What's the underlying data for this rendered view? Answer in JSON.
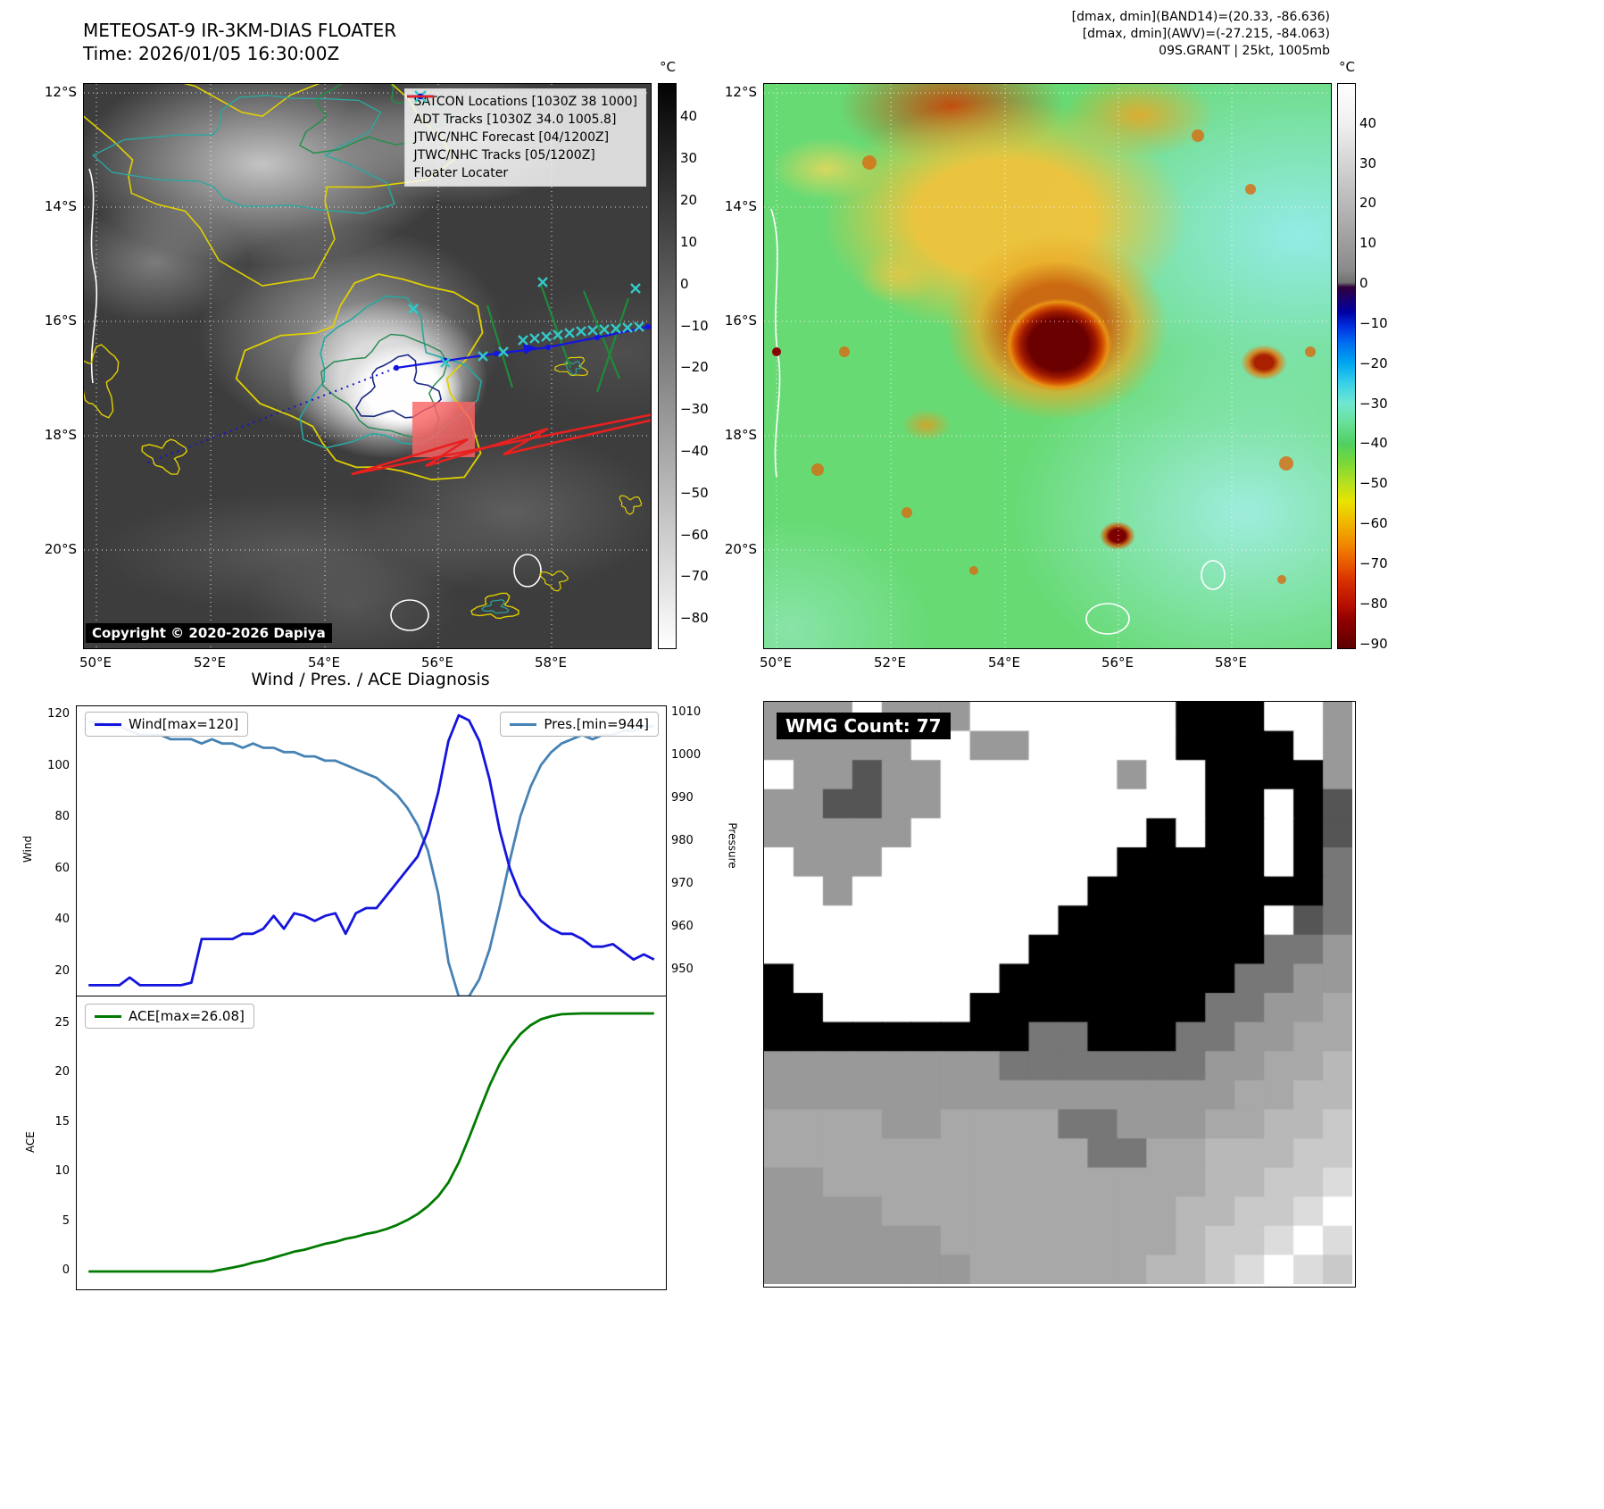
{
  "ir_panel": {
    "title": "METEOSAT-9 IR-3KM-DIAS FLOATER",
    "subtitle": "Time: 2026/01/05 16:30:00Z",
    "copyright": "Copyright © 2020-2026 Dapiya",
    "legend": [
      {
        "label": "SATCON Locations [1030Z 38 1000]",
        "marker": "x",
        "color": "#35c8c8"
      },
      {
        "label": "ADT Tracks [1030Z 34.0 1005.8]",
        "marker": "line",
        "color": "#1f8a3a"
      },
      {
        "label": "JTWC/NHC Forecast [04/1200Z]",
        "marker": "dotted",
        "color": "#1515cc"
      },
      {
        "label": "JTWC/NHC Tracks [05/1200Z]",
        "marker": "line-dot",
        "color": "#1515e0"
      },
      {
        "label": "Floater Locater",
        "marker": "line",
        "color": "#e82020"
      }
    ],
    "lat_ticks": [
      "12°S",
      "14°S",
      "16°S",
      "18°S",
      "20°S"
    ],
    "lon_ticks": [
      "50°E",
      "52°E",
      "54°E",
      "56°E",
      "58°E"
    ],
    "colorbar_unit": "°C",
    "colorbar_ticks": [
      "40",
      "30",
      "20",
      "10",
      "0",
      "−10",
      "−20",
      "−30",
      "−40",
      "−50",
      "−60",
      "−70",
      "−80"
    ]
  },
  "enh_panel": {
    "header_lines": [
      "[dmax, dmin](BAND14)=(20.33, -86.636)",
      "[dmax, dmin](AWV)=(-27.215, -84.063)",
      "09S.GRANT | 25kt, 1005mb"
    ],
    "lat_ticks": [
      "12°S",
      "14°S",
      "16°S",
      "18°S",
      "20°S"
    ],
    "lon_ticks": [
      "50°E",
      "52°E",
      "54°E",
      "56°E",
      "58°E"
    ],
    "colorbar_unit": "°C",
    "colorbar_ticks": [
      "40",
      "30",
      "20",
      "10",
      "0",
      "−10",
      "−20",
      "−30",
      "−40",
      "−50",
      "−60",
      "−70",
      "−80",
      "−90"
    ]
  },
  "diagnosis": {
    "title": "Wind / Pres. / ACE Diagnosis",
    "wind_ylabel": "Wind",
    "pressure_ylabel": "Pressure",
    "ace_ylabel": "ACE",
    "wind_ticks": [
      20,
      40,
      60,
      80,
      100,
      120
    ],
    "pressure_ticks": [
      950,
      960,
      970,
      980,
      990,
      1000,
      1010
    ],
    "ace_ticks": [
      0,
      5,
      10,
      15,
      20,
      25
    ]
  },
  "wmg_panel": {
    "label": "WMG Count: 77",
    "grid": [
      "33393339999999000993",
      "33333993399999000093",
      "93313399999939900003",
      "33113399999999900901",
      "33333999999990900901",
      "93339999999900000902",
      "99399999999000000002",
      "99999999990000000912",
      "99999999900000000223",
      "09999999000000002233",
      "00999990000000022334",
      "00000000022000223344",
      "33333333222222233445",
      "33333333333333334455",
      "44443344442233344556",
      "44444444444224455566",
      "33444444444444455667",
      "33334444444444556679",
      "33333344444444566797",
      "33333334444445567976"
    ]
  },
  "chart_data": [
    {
      "type": "line",
      "title": "Wind / Pres. / ACE Diagnosis — wind and pressure traces",
      "series": [
        {
          "name": "Wind[max=120]",
          "color": "#1414dd",
          "axis": "left",
          "values": [
            15,
            15,
            15,
            15,
            18,
            15,
            15,
            15,
            15,
            15,
            16,
            33,
            33,
            33,
            33,
            35,
            35,
            37,
            42,
            37,
            43,
            42,
            40,
            42,
            43,
            35,
            43,
            45,
            45,
            50,
            55,
            60,
            65,
            75,
            90,
            110,
            120,
            118,
            110,
            95,
            75,
            60,
            50,
            45,
            40,
            37,
            35,
            35,
            33,
            30,
            30,
            31,
            28,
            25,
            27,
            25
          ]
        },
        {
          "name": "Pres.[min=944]",
          "color": "#4682b4",
          "axis": "right",
          "values": [
            1008,
            1008,
            1007,
            1007,
            1006,
            1005,
            1005,
            1005,
            1004,
            1004,
            1004,
            1003,
            1004,
            1003,
            1003,
            1002,
            1003,
            1002,
            1002,
            1001,
            1001,
            1000,
            1000,
            999,
            999,
            998,
            997,
            996,
            995,
            993,
            991,
            988,
            984,
            978,
            968,
            952,
            944,
            944,
            948,
            955,
            965,
            976,
            986,
            993,
            998,
            1001,
            1003,
            1004,
            1005,
            1004,
            1005,
            1005,
            1006,
            1006,
            1007,
            1007
          ]
        }
      ],
      "left_axis": {
        "label": "Wind",
        "ticks": [
          20,
          40,
          60,
          80,
          100,
          120
        ]
      },
      "right_axis": {
        "label": "Pressure",
        "ticks": [
          950,
          960,
          970,
          980,
          990,
          1000,
          1010
        ]
      }
    },
    {
      "type": "line",
      "title": "ACE accumulation trace",
      "series": [
        {
          "name": "ACE[max=26.08]",
          "color": "#007a00",
          "axis": "left",
          "values": [
            0,
            0,
            0,
            0,
            0,
            0,
            0,
            0,
            0,
            0,
            0,
            0,
            0,
            0.2,
            0.4,
            0.6,
            0.9,
            1.1,
            1.4,
            1.7,
            2.0,
            2.2,
            2.5,
            2.8,
            3.0,
            3.3,
            3.5,
            3.8,
            4.0,
            4.3,
            4.7,
            5.2,
            5.8,
            6.6,
            7.6,
            9.0,
            11.0,
            13.5,
            16.2,
            18.8,
            21.0,
            22.7,
            24.0,
            24.9,
            25.5,
            25.8,
            26.0,
            26.05,
            26.08,
            26.08,
            26.08,
            26.08,
            26.08,
            26.08,
            26.08,
            26.08
          ]
        }
      ],
      "left_axis": {
        "label": "ACE",
        "ticks": [
          0,
          5,
          10,
          15,
          20,
          25
        ]
      }
    }
  ]
}
